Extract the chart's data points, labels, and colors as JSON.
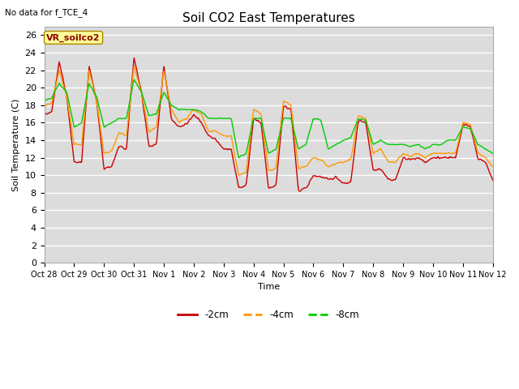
{
  "title": "Soil CO2 East Temperatures",
  "subtitle": "No data for f_TCE_4",
  "ylabel": "Soil Temperature (C)",
  "xlabel": "Time",
  "box_label": "VR_soilco2",
  "ylim": [
    0,
    27
  ],
  "yticks": [
    0,
    2,
    4,
    6,
    8,
    10,
    12,
    14,
    16,
    18,
    20,
    22,
    24,
    26
  ],
  "xtick_labels": [
    "Oct 28",
    "Oct 29",
    "Oct 30",
    "Oct 31",
    "Nov 1",
    "Nov 2",
    "Nov 3",
    "Nov 4",
    "Nov 5",
    "Nov 6",
    "Nov 7",
    "Nov 8",
    "Nov 9",
    "Nov 10",
    "Nov 11",
    "Nov 12"
  ],
  "colors": {
    "neg2cm": "#cc0000",
    "neg4cm": "#ff9900",
    "neg8cm": "#00cc00",
    "fig_bg": "#ffffff",
    "plot_bg": "#dcdcdc",
    "grid": "#ffffff"
  },
  "n_days": 15,
  "days_x": [
    0,
    0.25,
    0.5,
    0.75,
    1.0,
    1.25,
    1.5,
    1.75,
    2.0,
    2.25,
    2.5,
    2.75,
    3.0,
    3.25,
    3.5,
    3.75,
    4.0,
    4.25,
    4.5,
    4.75,
    5.0,
    5.25,
    5.5,
    5.75,
    6.0,
    6.25,
    6.5,
    6.75,
    7.0,
    7.25,
    7.5,
    7.75,
    8.0,
    8.25,
    8.5,
    8.75,
    9.0,
    9.25,
    9.5,
    9.75,
    10.0,
    10.25,
    10.5,
    10.75,
    11.0,
    11.25,
    11.5,
    11.75,
    12.0,
    12.25,
    12.5,
    12.75,
    13.0,
    13.25,
    13.5,
    13.75,
    14.0,
    14.25,
    14.5,
    14.75,
    15.0
  ],
  "red_vals": [
    17.0,
    17.2,
    23.0,
    19.0,
    11.5,
    11.5,
    22.5,
    18.5,
    10.8,
    11.0,
    13.3,
    13.0,
    23.5,
    19.5,
    13.3,
    13.5,
    22.5,
    16.5,
    15.5,
    15.8,
    17.0,
    16.0,
    14.5,
    14.0,
    13.0,
    13.0,
    8.5,
    8.8,
    16.5,
    16.0,
    8.5,
    8.8,
    18.0,
    17.5,
    8.3,
    8.5,
    10.0,
    9.8,
    9.5,
    9.8,
    9.0,
    9.2,
    16.3,
    16.0,
    10.5,
    10.8,
    9.5,
    9.5,
    12.0,
    11.8,
    12.0,
    11.5,
    12.0,
    12.0,
    12.0,
    12.0,
    15.8,
    15.5,
    12.0,
    11.5,
    9.5
  ],
  "orange_vals": [
    18.0,
    18.2,
    22.0,
    19.0,
    13.5,
    13.5,
    22.0,
    18.5,
    12.5,
    12.8,
    14.8,
    14.5,
    22.5,
    19.5,
    15.0,
    15.5,
    22.0,
    17.5,
    16.0,
    16.5,
    17.5,
    17.0,
    15.0,
    15.0,
    14.5,
    14.5,
    10.0,
    10.3,
    17.5,
    17.0,
    10.5,
    10.8,
    18.5,
    18.0,
    10.8,
    11.0,
    12.0,
    11.8,
    11.0,
    11.3,
    11.5,
    11.8,
    16.8,
    16.5,
    12.5,
    13.0,
    11.5,
    11.5,
    12.5,
    12.2,
    12.5,
    12.0,
    12.5,
    12.5,
    12.5,
    12.5,
    16.0,
    15.8,
    12.5,
    12.0,
    11.0
  ],
  "green_vals": [
    18.5,
    18.8,
    20.5,
    19.5,
    15.5,
    16.0,
    20.5,
    19.0,
    15.5,
    16.0,
    16.5,
    16.5,
    21.0,
    19.5,
    16.8,
    17.0,
    19.5,
    18.0,
    17.5,
    17.5,
    17.5,
    17.3,
    16.5,
    16.5,
    16.5,
    16.5,
    12.0,
    12.5,
    16.5,
    16.5,
    12.5,
    13.0,
    16.5,
    16.5,
    13.0,
    13.5,
    16.5,
    16.3,
    13.0,
    13.5,
    14.0,
    14.3,
    16.5,
    16.3,
    13.5,
    14.0,
    13.5,
    13.5,
    13.5,
    13.3,
    13.5,
    13.0,
    13.5,
    13.5,
    14.0,
    14.0,
    15.5,
    15.3,
    13.5,
    13.0,
    12.5
  ],
  "legend_items": [
    {
      "label": "-2cm",
      "color": "#cc0000",
      "linestyle": "-"
    },
    {
      "label": "-4cm",
      "color": "#ff9900",
      "linestyle": "--"
    },
    {
      "label": "-8cm",
      "color": "#00cc00",
      "linestyle": "--"
    }
  ]
}
